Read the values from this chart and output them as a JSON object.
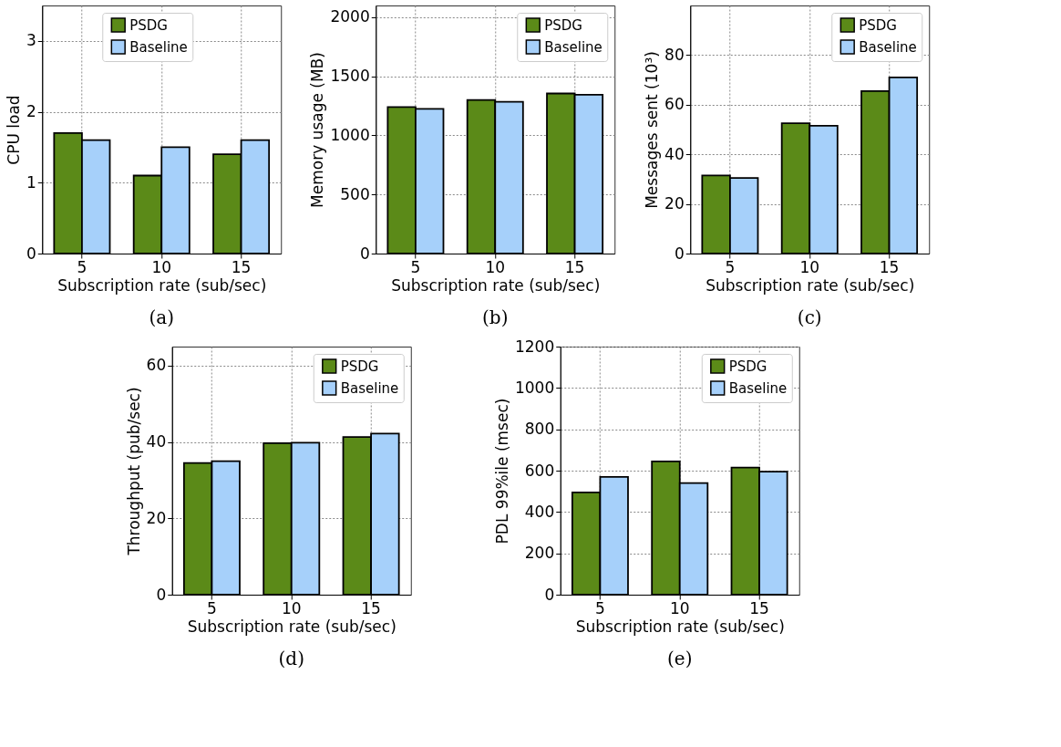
{
  "chart_data": [
    {
      "type": "bar",
      "annotations": [
        "(a)"
      ],
      "xlabel": "Subscription rate (sub/sec)",
      "ylabel": "CPU load",
      "categories": [
        "5",
        "10",
        "15"
      ],
      "series": [
        {
          "name": "PSDG",
          "color": "#5b8a18",
          "values": [
            1.7,
            1.1,
            1.4
          ]
        },
        {
          "name": "Baseline",
          "color": "#a6d0fa",
          "values": [
            1.6,
            1.5,
            1.6
          ]
        }
      ],
      "ylim": [
        0,
        3.5
      ],
      "yticks": [
        0,
        1,
        2,
        3
      ],
      "grid": true,
      "legend": "top"
    },
    {
      "type": "bar",
      "annotations": [
        "(b)"
      ],
      "xlabel": "Subscription rate (sub/sec)",
      "ylabel": "Memory usage (MB)",
      "categories": [
        "5",
        "10",
        "15"
      ],
      "series": [
        {
          "name": "PSDG",
          "color": "#5b8a18",
          "values": [
            1240,
            1300,
            1355
          ]
        },
        {
          "name": "Baseline",
          "color": "#a6d0fa",
          "values": [
            1225,
            1285,
            1345
          ]
        }
      ],
      "ylim": [
        0,
        2100
      ],
      "yticks": [
        0,
        500,
        1000,
        1500,
        2000
      ],
      "grid": true,
      "legend": "top right"
    },
    {
      "type": "bar",
      "annotations": [
        "(c)"
      ],
      "xlabel": "Subscription rate (sub/sec)",
      "ylabel": "Messages sent (10³)",
      "categories": [
        "5",
        "10",
        "15"
      ],
      "series": [
        {
          "name": "PSDG",
          "color": "#5b8a18",
          "values": [
            31.5,
            52.5,
            65.5
          ]
        },
        {
          "name": "Baseline",
          "color": "#a6d0fa",
          "values": [
            30.5,
            51.5,
            71
          ]
        }
      ],
      "ylim": [
        0,
        100
      ],
      "yticks": [
        0,
        20,
        40,
        60,
        80
      ],
      "grid": true,
      "legend": "top right"
    },
    {
      "type": "bar",
      "annotations": [
        "(d)"
      ],
      "xlabel": "Subscription rate (sub/sec)",
      "ylabel": "Throughput (pub/sec)",
      "categories": [
        "5",
        "10",
        "15"
      ],
      "series": [
        {
          "name": "PSDG",
          "color": "#5b8a18",
          "values": [
            34.5,
            39.7,
            41.3
          ]
        },
        {
          "name": "Baseline",
          "color": "#a6d0fa",
          "values": [
            35,
            39.8,
            42.2
          ]
        }
      ],
      "ylim": [
        0,
        65
      ],
      "yticks": [
        0,
        20,
        40,
        60
      ],
      "grid": true,
      "legend": "top right"
    },
    {
      "type": "bar",
      "annotations": [
        "(e)"
      ],
      "xlabel": "Subscription rate (sub/sec)",
      "ylabel": "PDL 99%ile (msec)",
      "categories": [
        "5",
        "10",
        "15"
      ],
      "series": [
        {
          "name": "PSDG",
          "color": "#5b8a18",
          "values": [
            495,
            645,
            615
          ]
        },
        {
          "name": "Baseline",
          "color": "#a6d0fa",
          "values": [
            570,
            540,
            595
          ]
        }
      ],
      "ylim": [
        0,
        1200
      ],
      "yticks": [
        0,
        200,
        400,
        600,
        800,
        1000,
        1200
      ],
      "grid": true,
      "legend": "top right"
    }
  ]
}
